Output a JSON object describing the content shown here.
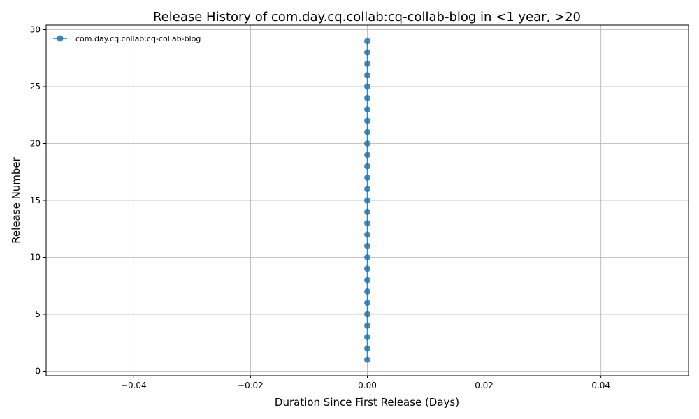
{
  "chart_data": {
    "type": "line",
    "title": "Release History of com.day.cq.collab:cq-collab-blog in <1 year, >20",
    "xlabel": "Duration Since First Release (Days)",
    "ylabel": "Release Number",
    "xlim": [
      -0.055,
      0.055
    ],
    "ylim": [
      -0.4,
      30.4
    ],
    "x_ticks": [
      -0.04,
      -0.02,
      0.0,
      0.02,
      0.04
    ],
    "x_tick_labels": [
      "−0.04",
      "−0.02",
      "0.00",
      "0.02",
      "0.04"
    ],
    "y_ticks": [
      0,
      5,
      10,
      15,
      20,
      25,
      30
    ],
    "y_tick_labels": [
      "0",
      "5",
      "10",
      "15",
      "20",
      "25",
      "30"
    ],
    "grid": true,
    "legend_position": "top-left",
    "series": [
      {
        "name": "com.day.cq.collab:cq-collab-blog",
        "color": "#1f77b4",
        "marker": "circle",
        "x": [
          0,
          0,
          0,
          0,
          0,
          0,
          0,
          0,
          0,
          0,
          0,
          0,
          0,
          0,
          0,
          0,
          0,
          0,
          0,
          0,
          0,
          0,
          0,
          0,
          0,
          0,
          0,
          0,
          0
        ],
        "y": [
          1,
          2,
          3,
          4,
          5,
          6,
          7,
          8,
          9,
          10,
          11,
          12,
          13,
          14,
          15,
          16,
          17,
          18,
          19,
          20,
          21,
          22,
          23,
          24,
          25,
          26,
          27,
          28,
          29
        ]
      }
    ]
  }
}
